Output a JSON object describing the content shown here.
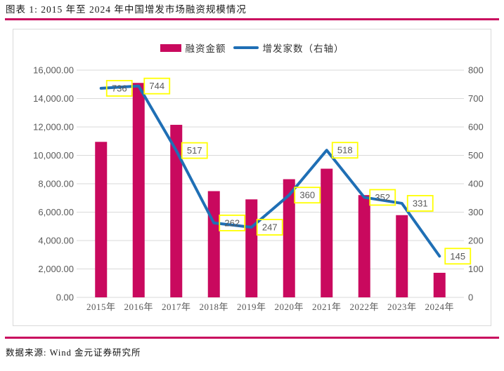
{
  "page": {
    "title": "图表 1: 2015 年至 2024 年中国增发市场融资规模情况",
    "source": "数据来源: Wind  金元证券研究所"
  },
  "theme": {
    "accent": "#C9095E",
    "line_blue": "#1F6FB5",
    "grid": "#D9D9D9",
    "axis_text": "#595959",
    "label_box_border": "#FFFF00",
    "label_text": "#595959",
    "panel_border": "#D9D9D9"
  },
  "legend": {
    "items": [
      {
        "label": "融资金额",
        "type": "bar"
      },
      {
        "label": "增发家数（右轴）",
        "type": "line"
      }
    ]
  },
  "chart_data": {
    "type": "bar+line",
    "title": "",
    "categories": [
      "2015年",
      "2016年",
      "2017年",
      "2018年",
      "2019年",
      "2020年",
      "2021年",
      "2022年",
      "2023年",
      "2024年"
    ],
    "series": [
      {
        "name": "融资金额",
        "type": "bar",
        "axis": "left",
        "color": "#C9095E",
        "estimated": true,
        "values": [
          10950,
          15100,
          12150,
          7480,
          6900,
          8320,
          9060,
          7200,
          5790,
          1730
        ]
      },
      {
        "name": "增发家数（右轴）",
        "type": "line",
        "axis": "right",
        "color": "#1F6FB5",
        "data_labels": true,
        "values": [
          736,
          744,
          517,
          262,
          247,
          360,
          518,
          352,
          331,
          145
        ]
      }
    ],
    "left_axis": {
      "min": 0,
      "max": 16000,
      "step": 2000,
      "tick_labels": [
        "0.00",
        "2,000.00",
        "4,000.00",
        "6,000.00",
        "8,000.00",
        "10,000.00",
        "12,000.00",
        "14,000.00",
        "16,000.00"
      ]
    },
    "right_axis": {
      "min": 0,
      "max": 800,
      "step": 100,
      "tick_labels": [
        "0",
        "100",
        "200",
        "300",
        "400",
        "500",
        "600",
        "700",
        "800"
      ]
    },
    "grid": true,
    "legend_position": "top-center"
  }
}
